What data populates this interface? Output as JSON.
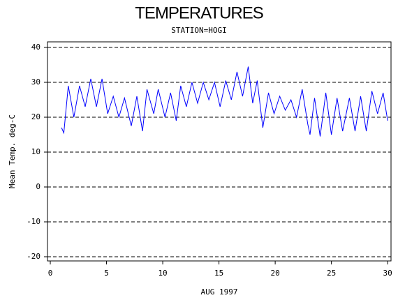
{
  "chart_data": {
    "type": "line",
    "title": "TEMPERATURES",
    "subtitle": "STATION=HOGI",
    "x_label": "AUG 1997",
    "y_label": "Mean Temp. deg-C",
    "xlim": [
      -0.25,
      30.3
    ],
    "xticks": [
      0,
      5,
      10,
      15,
      20,
      25,
      30
    ],
    "ylim": [
      -21.2,
      41.6
    ],
    "yticks": [
      -20,
      -10,
      0,
      10,
      20,
      30,
      40
    ],
    "grid": true,
    "series": [
      {
        "color": "#0000ff",
        "x": [
          1.0,
          1.2,
          1.6,
          2.1,
          2.6,
          3.1,
          3.6,
          4.1,
          4.6,
          5.1,
          5.6,
          6.1,
          6.6,
          7.2,
          7.7,
          8.2,
          8.6,
          9.2,
          9.6,
          10.2,
          10.7,
          11.2,
          11.6,
          12.1,
          12.6,
          13.1,
          13.6,
          14.1,
          14.6,
          15.1,
          15.6,
          16.1,
          16.6,
          17.1,
          17.6,
          18.0,
          18.4,
          18.9,
          19.4,
          19.9,
          20.4,
          20.9,
          21.4,
          21.9,
          22.4,
          22.9,
          23.1,
          23.5,
          24.0,
          24.5,
          25.0,
          25.5,
          26.0,
          26.6,
          27.1,
          27.6,
          28.1,
          28.6,
          29.1,
          29.6,
          30.0
        ],
        "values": [
          17,
          15.5,
          29,
          20,
          29,
          23,
          31,
          23,
          31,
          21,
          26,
          20,
          25.5,
          17.5,
          26,
          16,
          28,
          21,
          28,
          20,
          27,
          19,
          29,
          23,
          30,
          24,
          30,
          25,
          30,
          23,
          30.5,
          25,
          33,
          26,
          34.5,
          24,
          30.5,
          17,
          27,
          21,
          26,
          22,
          25,
          20,
          28,
          18,
          15,
          25.5,
          14.5,
          27,
          15,
          25.5,
          16,
          25.5,
          16,
          26,
          16,
          27.5,
          21,
          27,
          19
        ]
      }
    ]
  }
}
